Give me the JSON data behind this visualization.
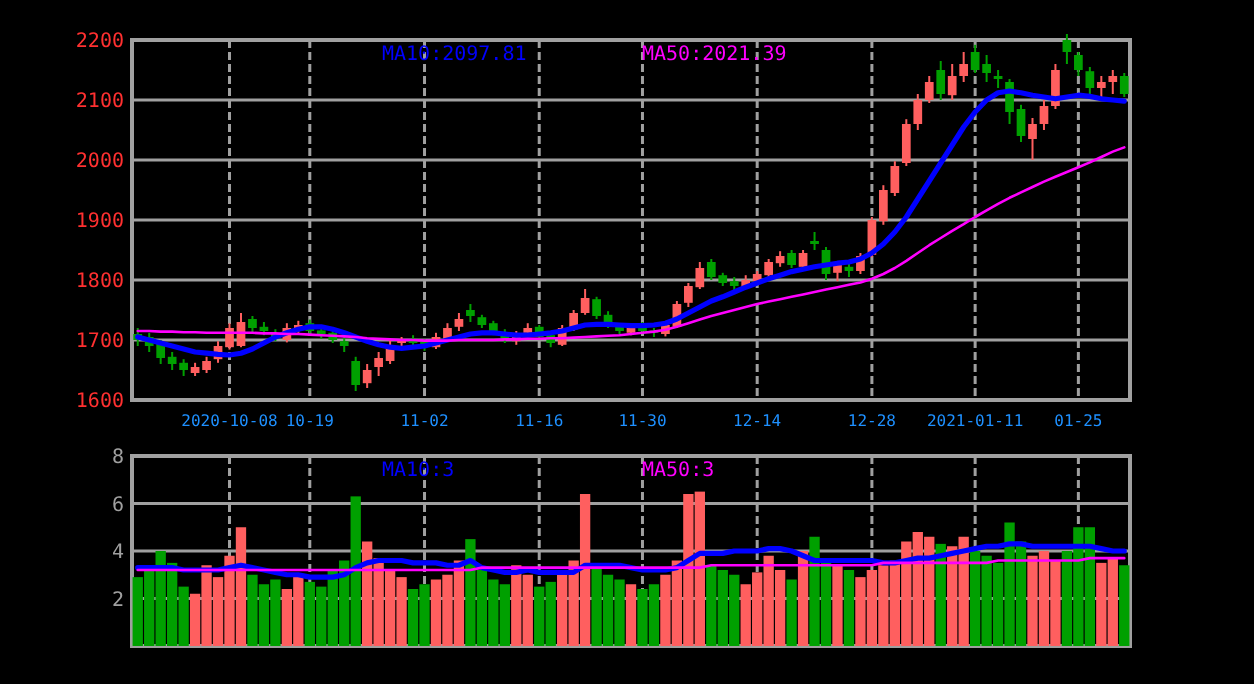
{
  "chart_data": [
    {
      "type": "candlestick",
      "categories": [
        null,
        null,
        null,
        null,
        null,
        null,
        null,
        null,
        "2020-10-08",
        null,
        null,
        null,
        null,
        null,
        null,
        "10-19",
        null,
        null,
        null,
        null,
        null,
        null,
        null,
        null,
        null,
        "11-02",
        null,
        null,
        null,
        null,
        null,
        null,
        null,
        null,
        null,
        "11-16",
        null,
        null,
        null,
        null,
        null,
        null,
        null,
        null,
        "11-30",
        null,
        null,
        null,
        null,
        null,
        null,
        null,
        null,
        null,
        "12-14",
        null,
        null,
        null,
        null,
        null,
        null,
        null,
        null,
        null,
        "12-28",
        null,
        null,
        null,
        null,
        null,
        null,
        null,
        null,
        "2021-01-11",
        null,
        null,
        null,
        null,
        null,
        null,
        null,
        null,
        "01-25",
        null,
        null,
        null,
        null
      ],
      "ohlc": [
        [
          1710,
          1720,
          1690,
          1700
        ],
        [
          1705,
          1712,
          1680,
          1690
        ],
        [
          1695,
          1700,
          1660,
          1670
        ],
        [
          1672,
          1680,
          1650,
          1660
        ],
        [
          1662,
          1668,
          1640,
          1650
        ],
        [
          1645,
          1662,
          1640,
          1655
        ],
        [
          1650,
          1672,
          1645,
          1665
        ],
        [
          1668,
          1698,
          1662,
          1690
        ],
        [
          1688,
          1728,
          1684,
          1720
        ],
        [
          1690,
          1745,
          1688,
          1730
        ],
        [
          1735,
          1740,
          1712,
          1720
        ],
        [
          1722,
          1730,
          1708,
          1715
        ],
        [
          1712,
          1718,
          1698,
          1705
        ],
        [
          1700,
          1728,
          1696,
          1720
        ],
        [
          1718,
          1732,
          1712,
          1725
        ],
        [
          1728,
          1734,
          1710,
          1715
        ],
        [
          1716,
          1722,
          1702,
          1710
        ],
        [
          1712,
          1716,
          1695,
          1700
        ],
        [
          1698,
          1705,
          1680,
          1690
        ],
        [
          1665,
          1672,
          1615,
          1625
        ],
        [
          1628,
          1660,
          1620,
          1650
        ],
        [
          1655,
          1680,
          1640,
          1670
        ],
        [
          1665,
          1700,
          1660,
          1690
        ],
        [
          1695,
          1705,
          1685,
          1700
        ],
        [
          1702,
          1708,
          1688,
          1695
        ],
        [
          1698,
          1702,
          1682,
          1690
        ],
        [
          1688,
          1712,
          1685,
          1705
        ],
        [
          1700,
          1728,
          1698,
          1720
        ],
        [
          1722,
          1745,
          1715,
          1735
        ],
        [
          1750,
          1760,
          1730,
          1740
        ],
        [
          1738,
          1742,
          1720,
          1725
        ],
        [
          1728,
          1732,
          1708,
          1715
        ],
        [
          1712,
          1718,
          1695,
          1700
        ],
        [
          1698,
          1715,
          1692,
          1710
        ],
        [
          1712,
          1728,
          1708,
          1720
        ],
        [
          1722,
          1725,
          1700,
          1705
        ],
        [
          1708,
          1712,
          1688,
          1695
        ],
        [
          1692,
          1725,
          1690,
          1720
        ],
        [
          1718,
          1750,
          1715,
          1745
        ],
        [
          1745,
          1785,
          1742,
          1770
        ],
        [
          1768,
          1772,
          1735,
          1740
        ],
        [
          1742,
          1748,
          1720,
          1725
        ],
        [
          1722,
          1728,
          1710,
          1715
        ],
        [
          1712,
          1726,
          1708,
          1720
        ],
        [
          1722,
          1730,
          1710,
          1715
        ],
        [
          1716,
          1720,
          1705,
          1712
        ],
        [
          1710,
          1730,
          1706,
          1725
        ],
        [
          1722,
          1765,
          1720,
          1760
        ],
        [
          1762,
          1795,
          1755,
          1790
        ],
        [
          1788,
          1830,
          1785,
          1820
        ],
        [
          1830,
          1835,
          1800,
          1805
        ],
        [
          1808,
          1812,
          1790,
          1795
        ],
        [
          1798,
          1805,
          1782,
          1790
        ],
        [
          1788,
          1808,
          1785,
          1800
        ],
        [
          1798,
          1815,
          1795,
          1810
        ],
        [
          1808,
          1835,
          1805,
          1830
        ],
        [
          1828,
          1848,
          1822,
          1840
        ],
        [
          1845,
          1850,
          1820,
          1825
        ],
        [
          1822,
          1850,
          1818,
          1845
        ],
        [
          1865,
          1880,
          1850,
          1860
        ],
        [
          1850,
          1855,
          1800,
          1810
        ],
        [
          1812,
          1828,
          1798,
          1825
        ],
        [
          1822,
          1830,
          1805,
          1815
        ],
        [
          1815,
          1845,
          1810,
          1840
        ],
        [
          1842,
          1905,
          1838,
          1900
        ],
        [
          1898,
          1958,
          1892,
          1950
        ],
        [
          1945,
          1998,
          1940,
          1990
        ],
        [
          1995,
          2068,
          1990,
          2060
        ],
        [
          2060,
          2110,
          2050,
          2100
        ],
        [
          2100,
          2140,
          2095,
          2130
        ],
        [
          2150,
          2165,
          2100,
          2110
        ],
        [
          2108,
          2160,
          2100,
          2140
        ],
        [
          2140,
          2180,
          2130,
          2160
        ],
        [
          2180,
          2192,
          2145,
          2150
        ],
        [
          2160,
          2175,
          2130,
          2145
        ],
        [
          2140,
          2150,
          2120,
          2135
        ],
        [
          2130,
          2135,
          2060,
          2080
        ],
        [
          2085,
          2092,
          2030,
          2040
        ],
        [
          2035,
          2070,
          2000,
          2060
        ],
        [
          2060,
          2100,
          2050,
          2090
        ],
        [
          2090,
          2160,
          2085,
          2150
        ],
        [
          2200,
          2210,
          2160,
          2180
        ],
        [
          2175,
          2180,
          2140,
          2150
        ],
        [
          2148,
          2155,
          2110,
          2120
        ],
        [
          2120,
          2140,
          2100,
          2130
        ],
        [
          2130,
          2150,
          2110,
          2140
        ],
        [
          2140,
          2145,
          2105,
          2110
        ]
      ],
      "colors": [
        "#00a000",
        "#00a000",
        "#00a000",
        "#00a000",
        "#00a000",
        "#ff5f5f",
        "#ff5f5f",
        "#ff5f5f",
        "#ff5f5f",
        "#ff5f5f",
        "#00a000",
        "#00a000",
        "#00a000",
        "#ff5f5f",
        "#ff5f5f",
        "#00a000",
        "#00a000",
        "#00a000",
        "#00a000",
        "#00a000",
        "#ff5f5f",
        "#ff5f5f",
        "#ff5f5f",
        "#ff5f5f",
        "#00a000",
        "#00a000",
        "#ff5f5f",
        "#ff5f5f",
        "#ff5f5f",
        "#00a000",
        "#00a000",
        "#00a000",
        "#00a000",
        "#ff5f5f",
        "#ff5f5f",
        "#00a000",
        "#00a000",
        "#ff5f5f",
        "#ff5f5f",
        "#ff5f5f",
        "#00a000",
        "#00a000",
        "#00a000",
        "#ff5f5f",
        "#00a000",
        "#00a000",
        "#ff5f5f",
        "#ff5f5f",
        "#ff5f5f",
        "#ff5f5f",
        "#00a000",
        "#00a000",
        "#00a000",
        "#ff5f5f",
        "#ff5f5f",
        "#ff5f5f",
        "#ff5f5f",
        "#00a000",
        "#ff5f5f",
        "#00a000",
        "#00a000",
        "#ff5f5f",
        "#00a000",
        "#ff5f5f",
        "#ff5f5f",
        "#ff5f5f",
        "#ff5f5f",
        "#ff5f5f",
        "#ff5f5f",
        "#ff5f5f",
        "#00a000",
        "#ff5f5f",
        "#ff5f5f",
        "#00a000",
        "#00a000",
        "#00a000",
        "#00a000",
        "#00a000",
        "#ff5f5f",
        "#ff5f5f",
        "#ff5f5f",
        "#00a000",
        "#00a000",
        "#00a000",
        "#ff5f5f",
        "#ff5f5f",
        "#00a000"
      ],
      "series": [
        {
          "type": "line",
          "name": "MA10:2097.81",
          "color": "#0000ff",
          "values": [
            1705,
            1700,
            1695,
            1690,
            1685,
            1680,
            1678,
            1676,
            1675,
            1678,
            1685,
            1695,
            1705,
            1712,
            1718,
            1722,
            1722,
            1718,
            1712,
            1705,
            1698,
            1692,
            1688,
            1686,
            1688,
            1690,
            1695,
            1700,
            1705,
            1710,
            1712,
            1712,
            1710,
            1708,
            1708,
            1710,
            1712,
            1715,
            1720,
            1725,
            1726,
            1726,
            1725,
            1724,
            1724,
            1725,
            1728,
            1735,
            1745,
            1755,
            1765,
            1772,
            1780,
            1788,
            1795,
            1802,
            1808,
            1814,
            1818,
            1822,
            1825,
            1828,
            1830,
            1835,
            1845,
            1860,
            1880,
            1905,
            1935,
            1965,
            1995,
            2025,
            2055,
            2080,
            2100,
            2112,
            2115,
            2112,
            2108,
            2105,
            2102,
            2105,
            2108,
            2106,
            2102,
            2100,
            2098
          ]
        },
        {
          "type": "line",
          "name": "MA50:2021.39",
          "color": "#ff00ff",
          "values": [
            1715,
            1715,
            1714,
            1714,
            1713,
            1713,
            1712,
            1712,
            1712,
            1712,
            1712,
            1711,
            1711,
            1710,
            1710,
            1709,
            1708,
            1707,
            1706,
            1705,
            1703,
            1702,
            1701,
            1700,
            1700,
            1699,
            1699,
            1699,
            1700,
            1700,
            1700,
            1700,
            1701,
            1701,
            1702,
            1702,
            1703,
            1703,
            1704,
            1705,
            1706,
            1707,
            1708,
            1710,
            1712,
            1714,
            1717,
            1722,
            1728,
            1734,
            1740,
            1745,
            1750,
            1755,
            1760,
            1764,
            1768,
            1772,
            1776,
            1780,
            1784,
            1788,
            1792,
            1796,
            1802,
            1810,
            1820,
            1832,
            1845,
            1858,
            1870,
            1882,
            1893,
            1905,
            1916,
            1927,
            1937,
            1946,
            1955,
            1964,
            1972,
            1980,
            1988,
            1996,
            2005,
            2014,
            2021
          ]
        }
      ],
      "ylim": [
        1600,
        2200
      ],
      "yticks": [
        1600,
        1700,
        1800,
        1900,
        2000,
        2100,
        2200
      ],
      "grid": true,
      "legend": "top"
    },
    {
      "type": "bar",
      "categories": [
        null,
        null,
        null,
        null,
        null,
        null,
        null,
        null,
        null,
        null,
        null,
        null,
        null,
        null,
        null,
        null,
        null,
        null,
        null,
        null,
        null,
        null,
        null,
        null,
        null,
        null,
        null,
        null,
        null,
        null,
        null,
        null,
        null,
        null,
        null,
        null,
        null,
        null,
        null,
        null,
        null,
        null,
        null,
        null,
        null,
        null,
        null,
        null,
        null,
        null,
        null,
        null,
        null,
        null,
        null,
        null,
        null,
        null,
        null,
        null,
        null,
        null,
        null,
        null,
        null,
        null,
        null,
        null,
        null,
        null,
        null,
        null,
        null,
        null,
        null,
        null,
        null,
        null,
        null,
        null,
        null,
        null,
        null,
        null,
        null,
        null,
        null
      ],
      "values": [
        2.9,
        3.2,
        4.0,
        3.5,
        2.5,
        2.2,
        3.4,
        2.9,
        3.8,
        5.0,
        3.0,
        2.6,
        2.8,
        2.4,
        3.0,
        2.7,
        2.5,
        3.2,
        3.6,
        6.3,
        4.4,
        3.7,
        3.2,
        2.9,
        2.4,
        2.6,
        2.8,
        3.0,
        3.6,
        4.5,
        3.2,
        2.8,
        2.6,
        3.4,
        3.0,
        2.5,
        2.7,
        3.0,
        3.6,
        6.4,
        3.4,
        3.0,
        2.8,
        2.6,
        2.4,
        2.6,
        3.0,
        3.6,
        6.4,
        6.5,
        3.4,
        3.2,
        3.0,
        2.6,
        3.1,
        3.8,
        3.2,
        2.8,
        4.0,
        4.6,
        3.6,
        3.4,
        3.2,
        2.9,
        3.2,
        3.4,
        3.6,
        4.4,
        4.8,
        4.6,
        4.3,
        4.2,
        4.6,
        4.0,
        3.8,
        3.5,
        5.2,
        4.4,
        3.8,
        4.0,
        3.6,
        4.0,
        5.0,
        5.0,
        3.5,
        3.7,
        3.4
      ],
      "colors": [
        "#00a000",
        "#00a000",
        "#00a000",
        "#00a000",
        "#00a000",
        "#ff5f5f",
        "#ff5f5f",
        "#ff5f5f",
        "#ff5f5f",
        "#ff5f5f",
        "#00a000",
        "#00a000",
        "#00a000",
        "#ff5f5f",
        "#ff5f5f",
        "#00a000",
        "#00a000",
        "#00a000",
        "#00a000",
        "#00a000",
        "#ff5f5f",
        "#ff5f5f",
        "#ff5f5f",
        "#ff5f5f",
        "#00a000",
        "#00a000",
        "#ff5f5f",
        "#ff5f5f",
        "#ff5f5f",
        "#00a000",
        "#00a000",
        "#00a000",
        "#00a000",
        "#ff5f5f",
        "#ff5f5f",
        "#00a000",
        "#00a000",
        "#ff5f5f",
        "#ff5f5f",
        "#ff5f5f",
        "#00a000",
        "#00a000",
        "#00a000",
        "#ff5f5f",
        "#00a000",
        "#00a000",
        "#ff5f5f",
        "#ff5f5f",
        "#ff5f5f",
        "#ff5f5f",
        "#00a000",
        "#00a000",
        "#00a000",
        "#ff5f5f",
        "#ff5f5f",
        "#ff5f5f",
        "#ff5f5f",
        "#00a000",
        "#ff5f5f",
        "#00a000",
        "#00a000",
        "#ff5f5f",
        "#00a000",
        "#ff5f5f",
        "#ff5f5f",
        "#ff5f5f",
        "#ff5f5f",
        "#ff5f5f",
        "#ff5f5f",
        "#ff5f5f",
        "#00a000",
        "#ff5f5f",
        "#ff5f5f",
        "#00a000",
        "#00a000",
        "#00a000",
        "#00a000",
        "#00a000",
        "#ff5f5f",
        "#ff5f5f",
        "#ff5f5f",
        "#00a000",
        "#00a000",
        "#00a000",
        "#ff5f5f",
        "#ff5f5f",
        "#00a000"
      ],
      "series": [
        {
          "type": "line",
          "name": "MA10:3",
          "color": "#0000ff",
          "values": [
            3.3,
            3.3,
            3.3,
            3.3,
            3.2,
            3.2,
            3.2,
            3.2,
            3.3,
            3.4,
            3.3,
            3.2,
            3.1,
            3.0,
            3.0,
            2.9,
            2.9,
            2.9,
            3.0,
            3.3,
            3.5,
            3.6,
            3.6,
            3.6,
            3.5,
            3.5,
            3.5,
            3.4,
            3.4,
            3.6,
            3.3,
            3.2,
            3.1,
            3.1,
            3.2,
            3.1,
            3.1,
            3.1,
            3.1,
            3.4,
            3.4,
            3.4,
            3.4,
            3.3,
            3.2,
            3.2,
            3.2,
            3.3,
            3.6,
            3.9,
            3.9,
            3.9,
            4.0,
            4.0,
            4.0,
            4.1,
            4.1,
            4.0,
            3.8,
            3.6,
            3.6,
            3.6,
            3.6,
            3.6,
            3.6,
            3.5,
            3.5,
            3.6,
            3.7,
            3.7,
            3.8,
            3.9,
            4.0,
            4.1,
            4.2,
            4.2,
            4.3,
            4.3,
            4.2,
            4.2,
            4.2,
            4.2,
            4.2,
            4.2,
            4.1,
            4.0,
            4.0
          ]
        },
        {
          "type": "line",
          "name": "MA50:3",
          "color": "#ff00ff",
          "values": [
            3.2,
            3.2,
            3.2,
            3.2,
            3.2,
            3.2,
            3.2,
            3.2,
            3.2,
            3.2,
            3.2,
            3.2,
            3.2,
            3.2,
            3.2,
            3.2,
            3.2,
            3.2,
            3.2,
            3.2,
            3.2,
            3.2,
            3.2,
            3.2,
            3.2,
            3.2,
            3.2,
            3.2,
            3.2,
            3.2,
            3.3,
            3.3,
            3.3,
            3.3,
            3.3,
            3.3,
            3.3,
            3.3,
            3.3,
            3.3,
            3.3,
            3.3,
            3.3,
            3.3,
            3.3,
            3.3,
            3.3,
            3.3,
            3.3,
            3.3,
            3.4,
            3.4,
            3.4,
            3.4,
            3.4,
            3.4,
            3.4,
            3.4,
            3.4,
            3.4,
            3.4,
            3.4,
            3.4,
            3.4,
            3.4,
            3.5,
            3.5,
            3.5,
            3.5,
            3.5,
            3.5,
            3.5,
            3.5,
            3.5,
            3.5,
            3.6,
            3.6,
            3.6,
            3.6,
            3.6,
            3.6,
            3.6,
            3.6,
            3.7,
            3.7,
            3.7,
            3.7
          ]
        }
      ],
      "ylim": [
        0,
        8
      ],
      "yticks": [
        2,
        4,
        6,
        8
      ],
      "grid": true,
      "legend": "top",
      "tick_labels": "y"
    }
  ]
}
